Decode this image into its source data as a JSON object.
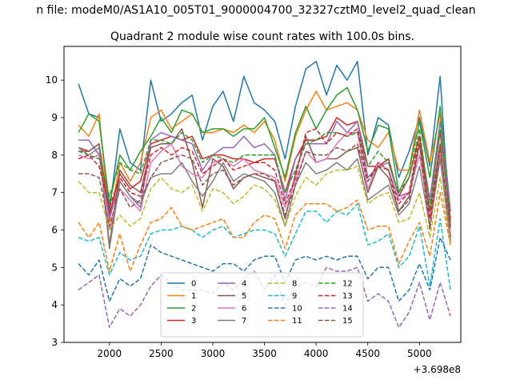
{
  "figure": {
    "suptitle": "n file: modeM0/AS1A10_005T01_9000004700_32327cztM0_level2_quad_clean",
    "offset_label": "+3.698e8"
  },
  "chart_data": {
    "type": "line",
    "title": "Quadrant 2 module wise count rates with 100.0s bins.",
    "xlabel": "",
    "ylabel": "",
    "xlim": [
      1560,
      5400
    ],
    "ylim": [
      3,
      10.9
    ],
    "grid": false,
    "legend_position": "bottom-center",
    "legend_columns": 4,
    "x_ticks": [
      2000,
      2500,
      3000,
      3500,
      4000,
      4500,
      5000
    ],
    "y_ticks": [
      3,
      4,
      5,
      6,
      7,
      8,
      9,
      10
    ],
    "x": [
      1700,
      1800,
      1900,
      2000,
      2100,
      2200,
      2300,
      2400,
      2500,
      2600,
      2700,
      2800,
      2900,
      3000,
      3100,
      3200,
      3300,
      3400,
      3500,
      3600,
      3700,
      3800,
      3900,
      4000,
      4100,
      4200,
      4300,
      4400,
      4500,
      4600,
      4700,
      4800,
      4900,
      5000,
      5100,
      5200,
      5300
    ],
    "series": [
      {
        "name": "0",
        "color": "#1f77b4",
        "dash": "solid",
        "values": [
          9.9,
          9.1,
          9.0,
          6.5,
          8.7,
          7.8,
          7.6,
          10.0,
          8.9,
          9.1,
          9.4,
          9.6,
          8.4,
          9.3,
          9.7,
          8.9,
          10.1,
          9.4,
          9.2,
          8.9,
          7.9,
          9.3,
          10.3,
          10.5,
          9.6,
          10.4,
          10.0,
          10.5,
          8.0,
          9.0,
          8.8,
          7.4,
          8.1,
          9.0,
          7.7,
          10.1,
          5.8
        ]
      },
      {
        "name": "1",
        "color": "#ff7f0e",
        "dash": "solid",
        "values": [
          8.8,
          8.5,
          9.1,
          6.2,
          7.8,
          7.3,
          7.8,
          9.0,
          9.2,
          8.7,
          8.9,
          9.1,
          8.6,
          8.6,
          8.7,
          8.6,
          8.8,
          8.6,
          8.9,
          8.4,
          7.3,
          8.5,
          9.2,
          9.7,
          9.2,
          9.3,
          9.4,
          9.2,
          8.4,
          8.2,
          8.6,
          7.6,
          7.6,
          9.2,
          7.8,
          9.1,
          6.2
        ]
      },
      {
        "name": "2",
        "color": "#2ca02c",
        "dash": "solid",
        "values": [
          8.6,
          9.1,
          8.9,
          6.7,
          8.0,
          7.6,
          8.1,
          8.5,
          9.0,
          8.6,
          9.2,
          9.1,
          8.6,
          8.7,
          8.7,
          8.5,
          8.7,
          8.7,
          9.0,
          8.2,
          7.4,
          8.6,
          9.3,
          8.7,
          9.2,
          9.6,
          9.8,
          9.2,
          8.1,
          8.8,
          8.7,
          7.0,
          7.6,
          8.9,
          7.4,
          9.3,
          6.5
        ]
      },
      {
        "name": "3",
        "color": "#d62728",
        "dash": "solid",
        "values": [
          8.2,
          8.1,
          8.3,
          6.4,
          7.5,
          7.1,
          7.3,
          8.3,
          8.4,
          8.5,
          8.4,
          8.5,
          7.9,
          8.0,
          8.0,
          7.9,
          7.9,
          7.8,
          7.9,
          7.9,
          7.0,
          7.9,
          8.4,
          8.4,
          8.5,
          9.0,
          8.8,
          8.9,
          7.7,
          7.7,
          7.9,
          6.9,
          7.4,
          8.5,
          6.8,
          8.6,
          6.3
        ]
      },
      {
        "name": "4",
        "color": "#9467bd",
        "dash": "solid",
        "values": [
          8.4,
          8.4,
          8.0,
          6.3,
          7.3,
          6.9,
          6.6,
          8.4,
          8.6,
          8.5,
          8.4,
          8.3,
          7.6,
          8.0,
          8.2,
          8.2,
          8.5,
          8.2,
          8.3,
          8.0,
          6.8,
          7.9,
          8.3,
          8.3,
          8.3,
          8.9,
          8.6,
          8.9,
          7.4,
          7.7,
          7.8,
          6.9,
          7.0,
          8.3,
          6.8,
          8.9,
          6.5
        ]
      },
      {
        "name": "5",
        "color": "#8c564b",
        "dash": "solid",
        "values": [
          8.1,
          8.1,
          8.3,
          5.6,
          7.6,
          7.2,
          7.0,
          8.2,
          8.3,
          8.3,
          8.7,
          7.8,
          6.6,
          7.9,
          7.7,
          7.1,
          7.4,
          7.5,
          7.4,
          7.3,
          6.3,
          7.5,
          8.5,
          7.8,
          7.9,
          7.9,
          8.1,
          8.2,
          7.0,
          7.7,
          7.4,
          6.5,
          6.9,
          8.3,
          6.5,
          8.3,
          5.7
        ]
      },
      {
        "name": "6",
        "color": "#e377c2",
        "dash": "solid",
        "values": [
          8.0,
          7.9,
          8.0,
          6.0,
          7.1,
          6.8,
          6.5,
          7.8,
          8.1,
          8.3,
          7.7,
          7.5,
          7.4,
          7.8,
          7.9,
          7.7,
          7.9,
          7.6,
          7.5,
          7.4,
          6.6,
          7.3,
          8.1,
          7.8,
          7.9,
          8.3,
          8.6,
          8.6,
          7.1,
          7.8,
          7.6,
          6.8,
          7.0,
          8.0,
          6.3,
          8.0,
          5.9
        ]
      },
      {
        "name": "7",
        "color": "#7f7f7f",
        "dash": "solid",
        "values": [
          8.2,
          8.0,
          8.2,
          5.5,
          7.3,
          6.9,
          6.7,
          7.4,
          7.5,
          7.5,
          7.8,
          7.3,
          6.9,
          7.3,
          7.8,
          7.3,
          7.5,
          7.4,
          7.3,
          7.0,
          6.1,
          7.2,
          7.8,
          7.5,
          7.6,
          7.8,
          7.6,
          7.9,
          6.8,
          7.0,
          7.2,
          6.4,
          6.7,
          7.7,
          6.1,
          7.9,
          5.7
        ]
      },
      {
        "name": "8",
        "color": "#bcbd22",
        "dash": "dashed",
        "values": [
          7.3,
          7.0,
          7.0,
          6.0,
          6.4,
          6.1,
          6.3,
          7.1,
          7.4,
          7.1,
          7.0,
          7.2,
          6.5,
          7.1,
          7.0,
          6.7,
          6.9,
          7.2,
          7.1,
          6.8,
          6.1,
          6.9,
          7.4,
          7.2,
          7.5,
          7.6,
          7.6,
          7.7,
          6.7,
          6.9,
          7.0,
          6.2,
          6.3,
          7.0,
          5.8,
          7.4,
          5.6
        ]
      },
      {
        "name": "9",
        "color": "#17becf",
        "dash": "dashed",
        "values": [
          5.8,
          5.7,
          5.8,
          4.8,
          5.4,
          5.2,
          5.3,
          5.9,
          6.0,
          6.0,
          6.1,
          6.0,
          5.8,
          6.0,
          6.1,
          5.8,
          5.9,
          6.0,
          6.0,
          5.9,
          5.3,
          5.9,
          6.5,
          6.5,
          6.2,
          6.5,
          6.4,
          6.7,
          5.6,
          5.7,
          5.9,
          5.0,
          5.3,
          6.1,
          4.5,
          6.3,
          4.4
        ]
      },
      {
        "name": "10",
        "color": "#1f77b4",
        "dash": "dashed",
        "values": [
          5.1,
          4.8,
          5.2,
          4.1,
          4.7,
          4.5,
          4.7,
          5.6,
          5.4,
          5.3,
          5.2,
          5.1,
          5.0,
          4.9,
          5.1,
          5.1,
          4.9,
          5.2,
          5.3,
          5.3,
          4.6,
          5.2,
          5.3,
          5.2,
          5.3,
          5.2,
          5.3,
          5.3,
          4.7,
          5.0,
          5.0,
          4.1,
          4.4,
          5.1,
          4.4,
          5.8,
          5.2
        ]
      },
      {
        "name": "11",
        "color": "#ff7f0e",
        "dash": "dashed",
        "values": [
          6.2,
          5.8,
          6.2,
          4.9,
          5.9,
          4.9,
          5.6,
          6.2,
          6.3,
          6.6,
          6.1,
          6.0,
          6.1,
          6.2,
          6.3,
          5.8,
          5.8,
          6.2,
          6.4,
          6.3,
          5.5,
          6.4,
          6.7,
          6.7,
          6.7,
          6.5,
          6.6,
          6.8,
          6.0,
          6.1,
          6.1,
          5.1,
          5.7,
          6.2,
          5.3,
          7.0,
          5.6
        ]
      },
      {
        "name": "12",
        "color": "#2ca02c",
        "dash": "dashed",
        "values": [
          8.1,
          8.0,
          7.9,
          6.9,
          7.8,
          7.6,
          7.5,
          8.4,
          8.4,
          8.3,
          8.6,
          8.4,
          7.8,
          8.0,
          7.9,
          7.8,
          8.0,
          8.0,
          8.0,
          8.0,
          7.0,
          7.6,
          8.3,
          8.4,
          8.6,
          8.6,
          8.5,
          8.6,
          7.7,
          8.1,
          7.8,
          7.0,
          7.4,
          8.7,
          6.6,
          8.7,
          6.2
        ]
      },
      {
        "name": "13",
        "color": "#d62728",
        "dash": "dashed",
        "values": [
          7.9,
          8.0,
          7.7,
          6.6,
          7.4,
          7.0,
          6.9,
          8.0,
          8.2,
          8.0,
          8.2,
          8.1,
          7.5,
          7.7,
          7.9,
          7.6,
          7.7,
          7.8,
          7.8,
          7.6,
          6.7,
          7.4,
          8.6,
          8.7,
          8.3,
          8.6,
          8.5,
          8.7,
          7.3,
          7.8,
          7.6,
          6.7,
          7.0,
          8.5,
          6.3,
          8.2,
          6.1
        ]
      },
      {
        "name": "14",
        "color": "#9467bd",
        "dash": "dashed",
        "values": [
          4.4,
          4.6,
          4.8,
          3.4,
          3.9,
          3.7,
          4.0,
          4.5,
          4.8,
          4.6,
          4.4,
          4.4,
          4.4,
          4.3,
          4.6,
          4.4,
          4.7,
          4.9,
          4.4,
          4.8,
          4.0,
          4.5,
          4.6,
          4.5,
          5.0,
          4.9,
          4.9,
          5.0,
          4.1,
          4.3,
          4.1,
          3.4,
          3.8,
          4.6,
          3.6,
          4.6,
          3.7
        ]
      },
      {
        "name": "15",
        "color": "#8c564b",
        "dash": "dashed",
        "values": [
          7.5,
          7.5,
          7.4,
          6.1,
          7.1,
          6.6,
          6.8,
          7.4,
          7.8,
          7.9,
          8.0,
          7.9,
          7.2,
          7.5,
          7.6,
          7.2,
          7.4,
          7.5,
          7.5,
          7.3,
          6.4,
          7.2,
          8.1,
          8.0,
          8.0,
          8.2,
          8.1,
          8.3,
          7.3,
          7.7,
          7.6,
          6.5,
          6.8,
          8.3,
          6.0,
          8.2,
          6.0
        ]
      }
    ]
  }
}
